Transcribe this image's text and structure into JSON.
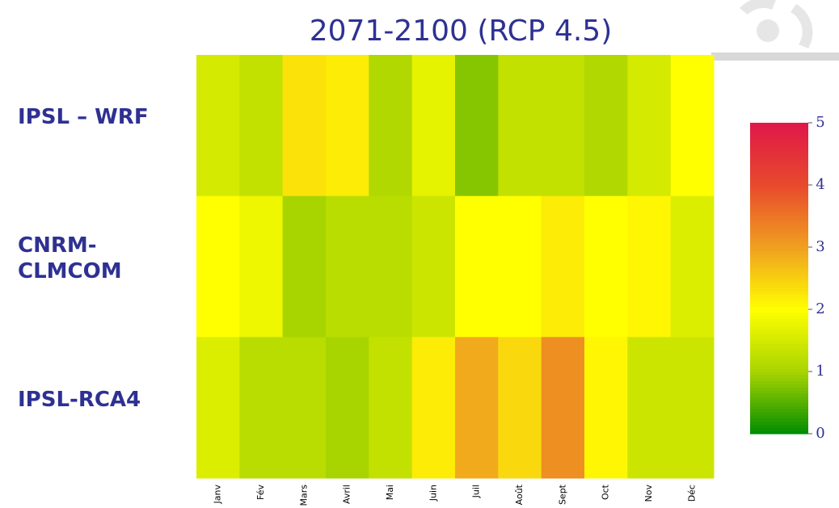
{
  "chart_data": {
    "type": "heatmap",
    "title": "2071-2100 (RCP 4.5)",
    "rows": [
      "IPSL – WRF",
      "CNRM-\nCLMCOM",
      "IPSL-RCA4"
    ],
    "categories": [
      "Janv",
      "Fév",
      "Mars",
      "Avril",
      "Mai",
      "Juin",
      "Juil",
      "Août",
      "Sept",
      "Oct",
      "Nov",
      "Déc"
    ],
    "values": [
      [
        1.5,
        1.3,
        2.3,
        2.2,
        1.1,
        1.7,
        0.8,
        1.3,
        1.3,
        1.1,
        1.5,
        2.0
      ],
      [
        2.0,
        1.8,
        1.0,
        1.2,
        1.2,
        1.4,
        2.0,
        2.0,
        2.2,
        2.0,
        2.1,
        1.6
      ],
      [
        1.6,
        1.2,
        1.2,
        1.0,
        1.3,
        2.2,
        2.9,
        2.4,
        3.2,
        2.1,
        1.4,
        1.4
      ]
    ],
    "clim": [
      0,
      5
    ],
    "cticks": [
      0,
      1,
      2,
      3,
      4,
      5
    ],
    "colors": [
      "#008c00",
      "#a8d400",
      "#ffff00",
      "#f0a020",
      "#e84a2c",
      "#e01848"
    ]
  }
}
